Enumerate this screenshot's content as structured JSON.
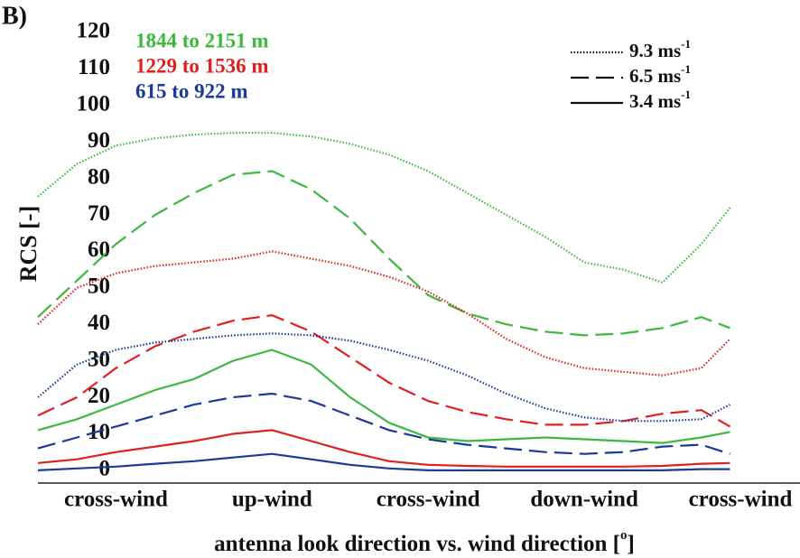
{
  "chart_data": {
    "type": "line",
    "panel_label": "B)",
    "y_label": "RCS [-]",
    "x_label": {
      "text": "antenna look direction vs. wind direction [",
      "sup": "o",
      "end": "]"
    },
    "x": [
      -45,
      -22.5,
      0,
      22.5,
      45,
      67.5,
      90,
      112.5,
      135,
      157.5,
      180,
      202.5,
      225,
      247.5,
      270,
      292.5,
      315,
      337.5,
      354
    ],
    "xlim": [
      -45,
      360
    ],
    "xticks": [
      {
        "value": 0,
        "label": "cross-wind"
      },
      {
        "value": 90,
        "label": "up-wind"
      },
      {
        "value": 180,
        "label": "cross-wind"
      },
      {
        "value": 270,
        "label": "down-wind"
      },
      {
        "value": 360,
        "label": "cross-wind"
      }
    ],
    "ylim": [
      -3.5,
      120
    ],
    "yticks": [
      0,
      10,
      20,
      30,
      40,
      50,
      60,
      70,
      80,
      90,
      100,
      110,
      120
    ],
    "annotations": [
      {
        "text": "1844 to 2151 m",
        "color": "#3cb83c"
      },
      {
        "text": "1229 to 1536 m",
        "color": "#e02020"
      },
      {
        "text": "615 to 922 m",
        "color": "#1a3a9a"
      }
    ],
    "legend": [
      {
        "label": "9.3 ms",
        "sup": "-1",
        "style": "dotted"
      },
      {
        "label": "6.5 ms",
        "sup": "-1",
        "style": "dashed"
      },
      {
        "label": "3.4 ms",
        "sup": "-1",
        "style": "solid"
      }
    ],
    "series": [
      {
        "color": "#3cb83c",
        "style": "dotted",
        "values": [
          75,
          84,
          89,
          91,
          92,
          92.5,
          92.5,
          91.5,
          89.5,
          86.5,
          82,
          76,
          70,
          64,
          57,
          55,
          51.5,
          62,
          72
        ]
      },
      {
        "color": "#3cb83c",
        "style": "dashed",
        "values": [
          42,
          52,
          62,
          70,
          76,
          81,
          82,
          77,
          69,
          58,
          48,
          43,
          40,
          38,
          37,
          37.5,
          39,
          42,
          39
        ]
      },
      {
        "color": "#3cb83c",
        "style": "solid",
        "values": [
          11,
          14,
          18,
          22,
          25,
          30,
          33,
          29,
          20,
          13,
          9,
          8,
          8.5,
          9,
          8.5,
          8,
          7.5,
          9,
          10.5
        ]
      },
      {
        "color": "#e02020",
        "style": "dotted",
        "values": [
          40,
          50,
          54,
          56,
          57,
          58,
          60,
          58,
          56,
          53,
          49,
          43,
          36,
          31,
          28,
          27,
          26,
          28,
          36
        ]
      },
      {
        "color": "#e02020",
        "style": "dashed",
        "values": [
          15,
          20,
          28,
          34,
          38,
          41,
          42.5,
          38,
          31,
          24,
          19,
          16,
          14,
          12.5,
          12.5,
          13.5,
          15.5,
          16.5,
          12
        ]
      },
      {
        "color": "#e02020",
        "style": "solid",
        "values": [
          2,
          3,
          5,
          6.5,
          8,
          10,
          11,
          8,
          5,
          2.5,
          1.5,
          1.2,
          1,
          1,
          1,
          1,
          1.2,
          1.8,
          2
        ]
      },
      {
        "color": "#1a3a9a",
        "style": "dotted",
        "values": [
          20,
          29,
          33,
          35,
          36,
          37,
          37.5,
          37,
          35.5,
          33,
          30,
          26,
          21,
          17,
          14.5,
          13.5,
          13.5,
          14,
          18
        ]
      },
      {
        "color": "#1a3a9a",
        "style": "dashed",
        "values": [
          6,
          9,
          12,
          15,
          18,
          20,
          21,
          19,
          15,
          11,
          8.5,
          7,
          6,
          5,
          4.5,
          5,
          6.5,
          7,
          4.5
        ]
      },
      {
        "color": "#1a3a9a",
        "style": "solid",
        "values": [
          0,
          0.5,
          1,
          1.8,
          2.5,
          3.5,
          4.5,
          3,
          1.5,
          0.5,
          0,
          0,
          0,
          0,
          0,
          0,
          0,
          0.3,
          0.3
        ]
      }
    ]
  }
}
